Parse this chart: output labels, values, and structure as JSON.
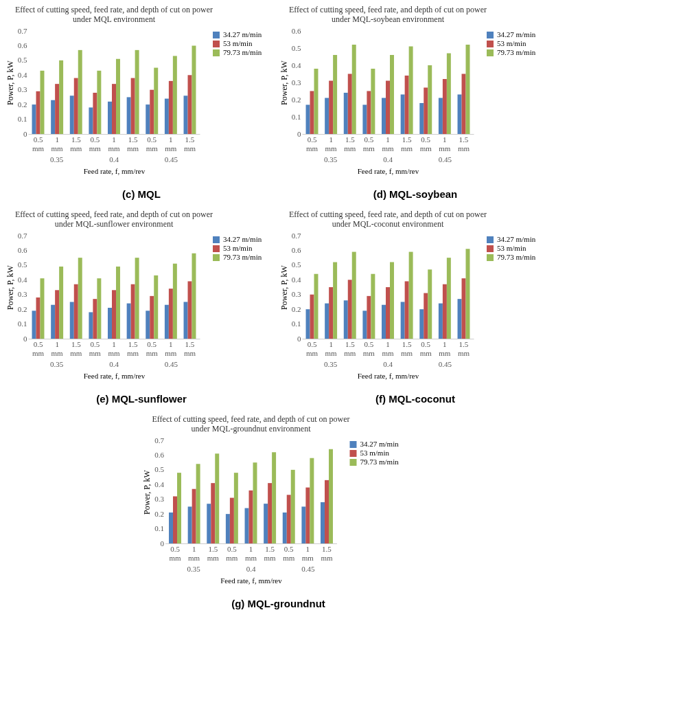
{
  "chart_data": [
    {
      "type": "bar",
      "title": "Effect of cutting speed, feed rate, and depth of cut on power\nunder MQL environment",
      "xlabel": "Feed rate, f, mm/rev",
      "ylabel": "Power, P, kW",
      "categories": [
        "0.5 mm",
        "1 mm",
        "1.5 mm",
        "0.5 mm",
        "1 mm",
        "1.5 mm",
        "0.5 mm",
        "1 mm",
        "1.5 mm"
      ],
      "ylim": [
        0,
        0.7
      ],
      "yticks": [
        0,
        0.1,
        0.2,
        0.3,
        0.4,
        0.5,
        0.6,
        0.7
      ],
      "grid": false,
      "legend": "right",
      "annotations": [
        "0.35",
        "0.4",
        "0.45",
        "(c) MQL"
      ],
      "series": [
        {
          "name": "34.27 m/min",
          "color": "#4f81bd",
          "values": [
            0.2,
            0.23,
            0.26,
            0.18,
            0.22,
            0.25,
            0.2,
            0.24,
            0.26
          ]
        },
        {
          "name": "53 m/min",
          "color": "#c0504d",
          "values": [
            0.29,
            0.34,
            0.38,
            0.28,
            0.34,
            0.38,
            0.3,
            0.36,
            0.4
          ]
        },
        {
          "name": "79.73 m/min",
          "color": "#9bbb59",
          "values": [
            0.43,
            0.5,
            0.57,
            0.43,
            0.51,
            0.57,
            0.45,
            0.53,
            0.6
          ]
        }
      ]
    },
    {
      "type": "bar",
      "title": "Effect of cutting speed, feed rate, and depth of cut on power\nunder MQL-soybean environment",
      "xlabel": "Feed rate, f, mm/rev",
      "ylabel": "Power, P, kW",
      "categories": [
        "0.5 mm",
        "1 mm",
        "1.5 mm",
        "0.5 mm",
        "1 mm",
        "1.5 mm",
        "0.5 mm",
        "1 mm",
        "1.5 mm"
      ],
      "ylim": [
        0,
        0.6
      ],
      "yticks": [
        0,
        0.1,
        0.2,
        0.3,
        0.4,
        0.5,
        0.6
      ],
      "grid": false,
      "legend": "right",
      "annotations": [
        "0.35",
        "0.4",
        "0.45",
        "(d) MQL-soybean"
      ],
      "series": [
        {
          "name": "34.27 m/min",
          "color": "#4f81bd",
          "values": [
            0.17,
            0.21,
            0.24,
            0.17,
            0.21,
            0.23,
            0.18,
            0.21,
            0.23
          ]
        },
        {
          "name": "53 m/min",
          "color": "#c0504d",
          "values": [
            0.25,
            0.31,
            0.35,
            0.25,
            0.31,
            0.34,
            0.27,
            0.32,
            0.35
          ]
        },
        {
          "name": "79.73 m/min",
          "color": "#9bbb59",
          "values": [
            0.38,
            0.46,
            0.52,
            0.38,
            0.46,
            0.51,
            0.4,
            0.47,
            0.52
          ]
        }
      ]
    },
    {
      "type": "bar",
      "title": "Effect of cutting speed, feed rate, and depth of cut on power\nunder MQL-sunflower environment",
      "xlabel": "Feed rate, f, mm/rev",
      "ylabel": "Power, P, kW",
      "categories": [
        "0.5 mm",
        "1 mm",
        "1.5 mm",
        "0.5 mm",
        "1 mm",
        "1.5 mm",
        "0.5 mm",
        "1 mm",
        "1.5 mm"
      ],
      "ylim": [
        0,
        0.7
      ],
      "yticks": [
        0,
        0.1,
        0.2,
        0.3,
        0.4,
        0.5,
        0.6,
        0.7
      ],
      "grid": false,
      "legend": "right",
      "annotations": [
        "0.35",
        "0.4",
        "0.45",
        "(e) MQL-sunflower"
      ],
      "series": [
        {
          "name": "34.27 m/min",
          "color": "#4f81bd",
          "values": [
            0.19,
            0.23,
            0.25,
            0.18,
            0.21,
            0.24,
            0.19,
            0.23,
            0.25
          ]
        },
        {
          "name": "53 m/min",
          "color": "#c0504d",
          "values": [
            0.28,
            0.33,
            0.37,
            0.27,
            0.33,
            0.37,
            0.29,
            0.34,
            0.39
          ]
        },
        {
          "name": "79.73 m/min",
          "color": "#9bbb59",
          "values": [
            0.41,
            0.49,
            0.55,
            0.41,
            0.49,
            0.55,
            0.43,
            0.51,
            0.58
          ]
        }
      ]
    },
    {
      "type": "bar",
      "title": "Effect of cutting speed, feed rate, and depth of cut on power\nunder MQL-coconut environment",
      "xlabel": "Feed rate, f, mm/rev",
      "ylabel": "Power, P, kW",
      "categories": [
        "0.5 mm",
        "1 mm",
        "1.5 mm",
        "0.5 mm",
        "1 mm",
        "1.5 mm",
        "0.5 mm",
        "1 mm",
        "1.5 mm"
      ],
      "ylim": [
        0,
        0.7
      ],
      "yticks": [
        0,
        0.1,
        0.2,
        0.3,
        0.4,
        0.5,
        0.6,
        0.7
      ],
      "grid": false,
      "legend": "right",
      "annotations": [
        "0.35",
        "0.4",
        "0.45",
        "(f) MQL-coconut"
      ],
      "series": [
        {
          "name": "34.27 m/min",
          "color": "#4f81bd",
          "values": [
            0.2,
            0.24,
            0.26,
            0.19,
            0.23,
            0.25,
            0.2,
            0.24,
            0.27
          ]
        },
        {
          "name": "53 m/min",
          "color": "#c0504d",
          "values": [
            0.3,
            0.35,
            0.4,
            0.29,
            0.35,
            0.39,
            0.31,
            0.37,
            0.41
          ]
        },
        {
          "name": "79.73 m/min",
          "color": "#9bbb59",
          "values": [
            0.44,
            0.52,
            0.59,
            0.44,
            0.52,
            0.59,
            0.47,
            0.55,
            0.61
          ]
        }
      ]
    },
    {
      "type": "bar",
      "title": "Effect of cutting  speed, feed rate, and depth of cut on power\nunder MQL-groundnut  environment",
      "xlabel": "Feed rate, f, mm/rev",
      "ylabel": "Power, P, kW",
      "categories": [
        "0.5 mm",
        "1 mm",
        "1.5 mm",
        "0.5 mm",
        "1 mm",
        "1.5 mm",
        "0.5 mm",
        "1 mm",
        "1.5 mm"
      ],
      "ylim": [
        0,
        0.7
      ],
      "yticks": [
        0,
        0.1,
        0.2,
        0.3,
        0.4,
        0.5,
        0.6,
        0.7
      ],
      "grid": false,
      "legend": "right",
      "annotations": [
        "0.35",
        "0.4",
        "0.45",
        "(g) MQL-groundnut"
      ],
      "series": [
        {
          "name": "34.27 m/min",
          "color": "#4f81bd",
          "values": [
            0.21,
            0.25,
            0.27,
            0.2,
            0.24,
            0.27,
            0.21,
            0.25,
            0.28
          ]
        },
        {
          "name": "53 m/min",
          "color": "#c0504d",
          "values": [
            0.32,
            0.37,
            0.41,
            0.31,
            0.36,
            0.41,
            0.33,
            0.38,
            0.43
          ]
        },
        {
          "name": "79.73 m/min",
          "color": "#9bbb59",
          "values": [
            0.48,
            0.54,
            0.61,
            0.48,
            0.55,
            0.62,
            0.5,
            0.58,
            0.64
          ]
        }
      ]
    }
  ]
}
